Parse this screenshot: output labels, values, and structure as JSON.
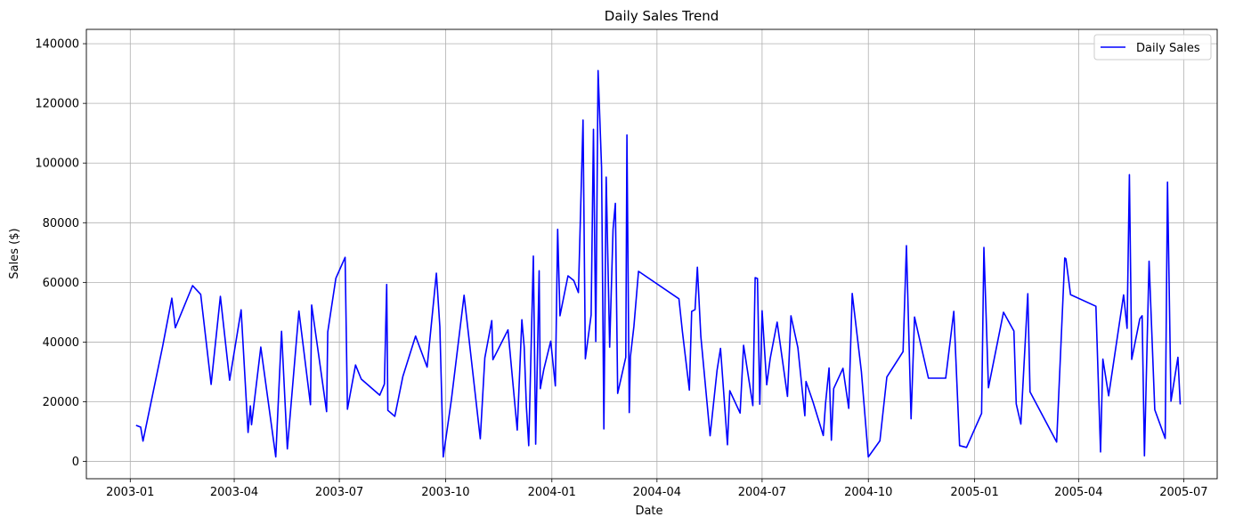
{
  "chart_data": {
    "type": "line",
    "title": "Daily Sales Trend",
    "xlabel": "Date",
    "ylabel": "Sales ($)",
    "x_ticks": [
      "2003-01",
      "2003-04",
      "2003-07",
      "2003-10",
      "2004-01",
      "2004-04",
      "2004-07",
      "2004-10",
      "2005-01",
      "2005-04",
      "2005-07"
    ],
    "x_tick_dates": [
      "2003-01-01",
      "2003-04-01",
      "2003-07-01",
      "2003-10-01",
      "2004-01-01",
      "2004-04-01",
      "2004-07-01",
      "2004-10-01",
      "2005-01-01",
      "2005-04-01",
      "2005-07-01"
    ],
    "y_ticks": [
      0,
      20000,
      40000,
      60000,
      80000,
      100000,
      120000,
      140000
    ],
    "xlim": [
      "2002-11-24",
      "2005-07-30"
    ],
    "ylim": [
      -5800,
      144800
    ],
    "grid": true,
    "legend": {
      "placement": "top-right"
    },
    "series": [
      {
        "name": "Daily Sales",
        "color": "#0000ff",
        "points": [
          [
            "2003-01-06",
            12100
          ],
          [
            "2003-01-10",
            11500
          ],
          [
            "2003-01-12",
            6800
          ],
          [
            "2003-01-29",
            38500
          ],
          [
            "2003-02-06",
            54700
          ],
          [
            "2003-02-09",
            44800
          ],
          [
            "2003-02-24",
            58900
          ],
          [
            "2003-03-03",
            56000
          ],
          [
            "2003-03-12",
            25800
          ],
          [
            "2003-03-20",
            55300
          ],
          [
            "2003-03-28",
            27200
          ],
          [
            "2003-04-07",
            50800
          ],
          [
            "2003-04-13",
            9700
          ],
          [
            "2003-04-15",
            18600
          ],
          [
            "2003-04-16",
            12300
          ],
          [
            "2003-04-24",
            38300
          ],
          [
            "2003-05-07",
            1500
          ],
          [
            "2003-05-12",
            43600
          ],
          [
            "2003-05-17",
            4200
          ],
          [
            "2003-05-27",
            50400
          ],
          [
            "2003-06-06",
            19000
          ],
          [
            "2003-06-07",
            52400
          ],
          [
            "2003-06-20",
            16700
          ],
          [
            "2003-06-21",
            43400
          ],
          [
            "2003-06-28",
            61400
          ],
          [
            "2003-07-06",
            68400
          ],
          [
            "2003-07-08",
            17500
          ],
          [
            "2003-07-15",
            32300
          ],
          [
            "2003-07-20",
            27600
          ],
          [
            "2003-08-05",
            22200
          ],
          [
            "2003-08-09",
            25900
          ],
          [
            "2003-08-11",
            59300
          ],
          [
            "2003-08-12",
            17100
          ],
          [
            "2003-08-18",
            15100
          ],
          [
            "2003-08-25",
            28400
          ],
          [
            "2003-09-05",
            42000
          ],
          [
            "2003-09-15",
            31600
          ],
          [
            "2003-09-23",
            63100
          ],
          [
            "2003-09-26",
            45100
          ],
          [
            "2003-09-29",
            1500
          ],
          [
            "2003-10-06",
            20600
          ],
          [
            "2003-10-17",
            55700
          ],
          [
            "2003-10-31",
            7600
          ],
          [
            "2003-11-04",
            34700
          ],
          [
            "2003-11-10",
            47200
          ],
          [
            "2003-11-11",
            34100
          ],
          [
            "2003-11-24",
            44100
          ],
          [
            "2003-12-02",
            10500
          ],
          [
            "2003-12-06",
            47500
          ],
          [
            "2003-12-08",
            38400
          ],
          [
            "2003-12-10",
            18200
          ],
          [
            "2003-12-12",
            5300
          ],
          [
            "2003-12-16",
            68800
          ],
          [
            "2003-12-18",
            5800
          ],
          [
            "2003-12-21",
            63900
          ],
          [
            "2003-12-22",
            24400
          ],
          [
            "2003-12-25",
            30800
          ],
          [
            "2003-12-31",
            40300
          ],
          [
            "2004-01-04",
            25300
          ],
          [
            "2004-01-06",
            77800
          ],
          [
            "2004-01-08",
            48800
          ],
          [
            "2004-01-15",
            62200
          ],
          [
            "2004-01-20",
            60600
          ],
          [
            "2004-01-24",
            56600
          ],
          [
            "2004-01-28",
            114400
          ],
          [
            "2004-01-30",
            34400
          ],
          [
            "2004-02-04",
            49100
          ],
          [
            "2004-02-06",
            111300
          ],
          [
            "2004-02-08",
            40200
          ],
          [
            "2004-02-10",
            131000
          ],
          [
            "2004-02-13",
            98500
          ],
          [
            "2004-02-15",
            10900
          ],
          [
            "2004-02-17",
            95300
          ],
          [
            "2004-02-20",
            38300
          ],
          [
            "2004-02-23",
            77800
          ],
          [
            "2004-02-25",
            86500
          ],
          [
            "2004-02-27",
            22800
          ],
          [
            "2004-03-05",
            34900
          ],
          [
            "2004-03-06",
            109400
          ],
          [
            "2004-03-08",
            16400
          ],
          [
            "2004-03-09",
            35100
          ],
          [
            "2004-03-12",
            45200
          ],
          [
            "2004-03-16",
            63700
          ],
          [
            "2004-04-20",
            54500
          ],
          [
            "2004-04-23",
            43500
          ],
          [
            "2004-04-29",
            23900
          ],
          [
            "2004-05-01",
            50300
          ],
          [
            "2004-05-04",
            50900
          ],
          [
            "2004-05-06",
            65100
          ],
          [
            "2004-05-09",
            41900
          ],
          [
            "2004-05-17",
            8600
          ],
          [
            "2004-05-23",
            30500
          ],
          [
            "2004-05-26",
            37900
          ],
          [
            "2004-06-01",
            5600
          ],
          [
            "2004-06-03",
            23700
          ],
          [
            "2004-06-12",
            16200
          ],
          [
            "2004-06-15",
            38900
          ],
          [
            "2004-06-23",
            18700
          ],
          [
            "2004-06-25",
            61600
          ],
          [
            "2004-06-27",
            61300
          ],
          [
            "2004-06-29",
            19200
          ],
          [
            "2004-07-01",
            50500
          ],
          [
            "2004-07-05",
            25700
          ],
          [
            "2004-07-08",
            34500
          ],
          [
            "2004-07-14",
            46700
          ],
          [
            "2004-07-23",
            21800
          ],
          [
            "2004-07-26",
            48800
          ],
          [
            "2004-08-01",
            38100
          ],
          [
            "2004-08-07",
            15300
          ],
          [
            "2004-08-08",
            26800
          ],
          [
            "2004-08-14",
            20000
          ],
          [
            "2004-08-23",
            8700
          ],
          [
            "2004-08-25",
            19600
          ],
          [
            "2004-08-28",
            31300
          ],
          [
            "2004-08-30",
            7100
          ],
          [
            "2004-09-01",
            24400
          ],
          [
            "2004-09-09",
            31200
          ],
          [
            "2004-09-14",
            17800
          ],
          [
            "2004-09-17",
            56300
          ],
          [
            "2004-09-25",
            30100
          ],
          [
            "2004-10-01",
            1500
          ],
          [
            "2004-10-11",
            6900
          ],
          [
            "2004-10-17",
            28300
          ],
          [
            "2004-10-31",
            36800
          ],
          [
            "2004-11-03",
            72300
          ],
          [
            "2004-11-07",
            14300
          ],
          [
            "2004-11-10",
            48400
          ],
          [
            "2004-11-22",
            27900
          ],
          [
            "2004-12-07",
            27900
          ],
          [
            "2004-12-14",
            50300
          ],
          [
            "2004-12-19",
            5300
          ],
          [
            "2004-12-25",
            4700
          ],
          [
            "2005-01-07",
            16100
          ],
          [
            "2005-01-09",
            71700
          ],
          [
            "2005-01-13",
            24700
          ],
          [
            "2005-01-26",
            50000
          ],
          [
            "2005-02-04",
            43700
          ],
          [
            "2005-02-06",
            19300
          ],
          [
            "2005-02-10",
            12500
          ],
          [
            "2005-02-16",
            56200
          ],
          [
            "2005-02-18",
            23300
          ],
          [
            "2005-03-13",
            6500
          ],
          [
            "2005-03-20",
            68200
          ],
          [
            "2005-03-21",
            67900
          ],
          [
            "2005-03-25",
            55900
          ],
          [
            "2005-04-16",
            52000
          ],
          [
            "2005-04-20",
            3200
          ],
          [
            "2005-04-22",
            34300
          ],
          [
            "2005-04-27",
            22000
          ],
          [
            "2005-05-10",
            55800
          ],
          [
            "2005-05-13",
            44600
          ],
          [
            "2005-05-15",
            96100
          ],
          [
            "2005-05-17",
            34200
          ],
          [
            "2005-05-24",
            47800
          ],
          [
            "2005-05-26",
            48800
          ],
          [
            "2005-05-28",
            1900
          ],
          [
            "2005-06-01",
            67100
          ],
          [
            "2005-06-06",
            17300
          ],
          [
            "2005-06-15",
            7700
          ],
          [
            "2005-06-17",
            93600
          ],
          [
            "2005-06-20",
            20200
          ],
          [
            "2005-06-26",
            34900
          ],
          [
            "2005-06-28",
            19100
          ]
        ]
      }
    ]
  }
}
